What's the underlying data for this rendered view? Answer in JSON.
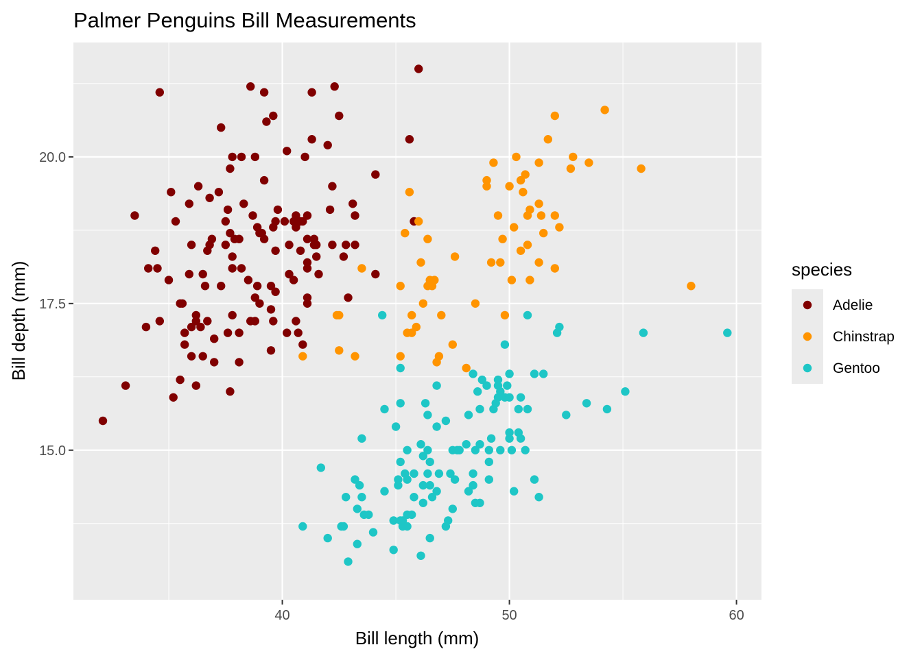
{
  "chart_data": {
    "type": "scatter",
    "title": "Palmer Penguins Bill Measurements",
    "xlabel": "Bill length (mm)",
    "ylabel": "Bill depth (mm)",
    "xlim": [
      30.8,
      61.1
    ],
    "ylim": [
      12.45,
      21.95
    ],
    "x_ticks": [
      40,
      50,
      60
    ],
    "x_tick_labels": [
      "40",
      "50",
      "60"
    ],
    "x_minor_ticks": [
      35,
      45,
      55
    ],
    "y_ticks": [
      15.0,
      17.5,
      20.0
    ],
    "y_tick_labels": [
      "15.0",
      "17.5",
      "20.0"
    ],
    "y_minor_ticks": [
      13.75,
      16.25,
      18.75,
      21.25
    ],
    "grid": true,
    "legend": {
      "title": "species",
      "placement": "right"
    },
    "series": [
      {
        "name": "Adelie",
        "color": "#800000",
        "points": [
          [
            32.1,
            15.5
          ],
          [
            33.1,
            16.1
          ],
          [
            33.5,
            19.0
          ],
          [
            34.0,
            17.1
          ],
          [
            34.1,
            18.1
          ],
          [
            34.4,
            18.4
          ],
          [
            34.5,
            18.1
          ],
          [
            34.6,
            21.1
          ],
          [
            34.6,
            17.2
          ],
          [
            35.0,
            17.9
          ],
          [
            35.1,
            19.4
          ],
          [
            35.2,
            15.9
          ],
          [
            35.3,
            18.9
          ],
          [
            35.5,
            16.2
          ],
          [
            35.5,
            17.5
          ],
          [
            35.6,
            17.5
          ],
          [
            35.7,
            17.0
          ],
          [
            35.7,
            16.8
          ],
          [
            35.9,
            18.0
          ],
          [
            35.9,
            19.2
          ],
          [
            36.0,
            18.5
          ],
          [
            36.0,
            16.6
          ],
          [
            36.0,
            17.1
          ],
          [
            36.2,
            16.1
          ],
          [
            36.2,
            17.3
          ],
          [
            36.2,
            17.2
          ],
          [
            36.3,
            19.5
          ],
          [
            36.4,
            17.1
          ],
          [
            36.5,
            16.6
          ],
          [
            36.5,
            18.0
          ],
          [
            36.6,
            17.8
          ],
          [
            36.7,
            18.4
          ],
          [
            36.7,
            17.2
          ],
          [
            36.8,
            18.5
          ],
          [
            36.8,
            19.3
          ],
          [
            36.9,
            18.6
          ],
          [
            37.0,
            16.5
          ],
          [
            37.0,
            16.9
          ],
          [
            37.2,
            19.4
          ],
          [
            37.3,
            17.8
          ],
          [
            37.3,
            20.5
          ],
          [
            37.5,
            18.9
          ],
          [
            37.5,
            18.5
          ],
          [
            37.6,
            19.1
          ],
          [
            37.6,
            17.0
          ],
          [
            37.7,
            16.0
          ],
          [
            37.7,
            18.7
          ],
          [
            37.7,
            19.8
          ],
          [
            37.8,
            18.3
          ],
          [
            37.8,
            17.3
          ],
          [
            37.8,
            20.0
          ],
          [
            37.8,
            18.1
          ],
          [
            37.9,
            18.6
          ],
          [
            38.1,
            18.6
          ],
          [
            38.1,
            17.0
          ],
          [
            38.1,
            16.5
          ],
          [
            38.2,
            20.0
          ],
          [
            38.2,
            18.1
          ],
          [
            38.3,
            19.2
          ],
          [
            38.5,
            17.9
          ],
          [
            38.6,
            21.2
          ],
          [
            38.6,
            17.2
          ],
          [
            38.7,
            19.0
          ],
          [
            38.8,
            17.2
          ],
          [
            38.8,
            20.0
          ],
          [
            38.8,
            17.6
          ],
          [
            38.9,
            18.8
          ],
          [
            38.9,
            17.8
          ],
          [
            39.0,
            18.7
          ],
          [
            39.0,
            17.5
          ],
          [
            39.1,
            18.7
          ],
          [
            39.2,
            21.1
          ],
          [
            39.2,
            19.6
          ],
          [
            39.2,
            18.6
          ],
          [
            39.3,
            20.6
          ],
          [
            39.5,
            17.4
          ],
          [
            39.5,
            16.7
          ],
          [
            39.5,
            17.8
          ],
          [
            39.6,
            18.8
          ],
          [
            39.6,
            20.7
          ],
          [
            39.6,
            17.2
          ],
          [
            39.7,
            18.4
          ],
          [
            39.7,
            18.9
          ],
          [
            39.7,
            17.7
          ],
          [
            39.8,
            19.1
          ],
          [
            40.1,
            18.9
          ],
          [
            40.2,
            17.0
          ],
          [
            40.2,
            20.1
          ],
          [
            40.3,
            18.0
          ],
          [
            40.3,
            18.5
          ],
          [
            40.5,
            18.9
          ],
          [
            40.5,
            17.9
          ],
          [
            40.6,
            18.8
          ],
          [
            40.6,
            17.2
          ],
          [
            40.6,
            19.0
          ],
          [
            40.7,
            17.0
          ],
          [
            40.8,
            18.4
          ],
          [
            40.8,
            18.9
          ],
          [
            40.9,
            18.9
          ],
          [
            40.9,
            16.8
          ],
          [
            41.0,
            20.0
          ],
          [
            41.1,
            18.2
          ],
          [
            41.1,
            19.0
          ],
          [
            41.1,
            17.5
          ],
          [
            41.1,
            18.6
          ],
          [
            41.1,
            17.6
          ],
          [
            41.1,
            18.1
          ],
          [
            41.3,
            21.1
          ],
          [
            41.3,
            20.3
          ],
          [
            41.4,
            18.5
          ],
          [
            41.4,
            18.6
          ],
          [
            41.5,
            18.3
          ],
          [
            41.5,
            18.5
          ],
          [
            41.6,
            18.0
          ],
          [
            42.0,
            20.2
          ],
          [
            42.1,
            19.1
          ],
          [
            42.2,
            18.5
          ],
          [
            42.2,
            19.5
          ],
          [
            42.3,
            21.2
          ],
          [
            42.5,
            20.7
          ],
          [
            42.7,
            18.3
          ],
          [
            42.8,
            18.5
          ],
          [
            42.9,
            17.6
          ],
          [
            43.1,
            19.2
          ],
          [
            43.2,
            18.5
          ],
          [
            43.2,
            19.0
          ],
          [
            44.1,
            18.0
          ],
          [
            44.1,
            19.7
          ],
          [
            45.6,
            20.3
          ],
          [
            45.8,
            18.9
          ],
          [
            46.0,
            21.5
          ]
        ]
      },
      {
        "name": "Chinstrap",
        "color": "#ff9400",
        "points": [
          [
            40.9,
            16.6
          ],
          [
            42.4,
            17.3
          ],
          [
            42.5,
            16.7
          ],
          [
            42.5,
            17.3
          ],
          [
            43.2,
            16.6
          ],
          [
            43.5,
            18.1
          ],
          [
            45.2,
            17.8
          ],
          [
            45.2,
            16.6
          ],
          [
            45.4,
            18.7
          ],
          [
            45.5,
            17.0
          ],
          [
            45.6,
            19.4
          ],
          [
            45.7,
            17.0
          ],
          [
            45.7,
            17.3
          ],
          [
            45.9,
            17.1
          ],
          [
            46.0,
            18.9
          ],
          [
            46.1,
            18.2
          ],
          [
            46.2,
            17.5
          ],
          [
            46.4,
            18.6
          ],
          [
            46.4,
            17.8
          ],
          [
            46.5,
            17.9
          ],
          [
            46.6,
            17.8
          ],
          [
            46.7,
            17.9
          ],
          [
            46.8,
            16.5
          ],
          [
            46.9,
            16.6
          ],
          [
            47.0,
            17.3
          ],
          [
            47.5,
            16.8
          ],
          [
            47.6,
            18.3
          ],
          [
            48.1,
            16.4
          ],
          [
            48.5,
            17.5
          ],
          [
            49.0,
            19.5
          ],
          [
            49.0,
            19.6
          ],
          [
            49.2,
            18.2
          ],
          [
            49.3,
            19.9
          ],
          [
            49.5,
            19.0
          ],
          [
            49.6,
            18.2
          ],
          [
            49.7,
            18.6
          ],
          [
            49.8,
            17.3
          ],
          [
            50.0,
            19.5
          ],
          [
            50.1,
            17.9
          ],
          [
            50.2,
            18.8
          ],
          [
            50.3,
            20.0
          ],
          [
            50.5,
            18.4
          ],
          [
            50.5,
            19.6
          ],
          [
            50.6,
            19.4
          ],
          [
            50.7,
            19.7
          ],
          [
            50.8,
            18.5
          ],
          [
            50.8,
            19.0
          ],
          [
            50.9,
            17.9
          ],
          [
            50.9,
            19.1
          ],
          [
            51.3,
            19.9
          ],
          [
            51.3,
            19.2
          ],
          [
            51.3,
            18.2
          ],
          [
            51.4,
            19.0
          ],
          [
            51.5,
            18.7
          ],
          [
            51.7,
            20.3
          ],
          [
            52.0,
            18.1
          ],
          [
            52.0,
            19.0
          ],
          [
            52.0,
            20.7
          ],
          [
            52.2,
            18.8
          ],
          [
            52.7,
            19.8
          ],
          [
            52.8,
            20.0
          ],
          [
            53.5,
            19.9
          ],
          [
            54.2,
            20.8
          ],
          [
            55.8,
            19.8
          ],
          [
            58.0,
            17.8
          ]
        ]
      },
      {
        "name": "Gentoo",
        "color": "#1ec6c6",
        "points": [
          [
            40.9,
            13.7
          ],
          [
            41.7,
            14.7
          ],
          [
            42.0,
            13.5
          ],
          [
            42.6,
            13.7
          ],
          [
            42.7,
            13.7
          ],
          [
            42.8,
            14.2
          ],
          [
            42.9,
            13.1
          ],
          [
            43.2,
            14.5
          ],
          [
            43.3,
            13.4
          ],
          [
            43.3,
            14.0
          ],
          [
            43.4,
            14.4
          ],
          [
            43.5,
            14.2
          ],
          [
            43.5,
            15.2
          ],
          [
            43.6,
            13.9
          ],
          [
            43.8,
            13.9
          ],
          [
            44.0,
            13.6
          ],
          [
            44.4,
            17.3
          ],
          [
            44.5,
            14.3
          ],
          [
            44.5,
            15.7
          ],
          [
            44.9,
            13.3
          ],
          [
            44.9,
            13.8
          ],
          [
            45.0,
            15.4
          ],
          [
            45.1,
            14.5
          ],
          [
            45.1,
            14.4
          ],
          [
            45.2,
            13.8
          ],
          [
            45.2,
            14.8
          ],
          [
            45.2,
            15.8
          ],
          [
            45.2,
            16.4
          ],
          [
            45.3,
            13.7
          ],
          [
            45.3,
            13.8
          ],
          [
            45.4,
            14.6
          ],
          [
            45.5,
            13.7
          ],
          [
            45.5,
            13.9
          ],
          [
            45.5,
            14.5
          ],
          [
            45.5,
            15.0
          ],
          [
            45.7,
            13.9
          ],
          [
            45.8,
            14.2
          ],
          [
            45.8,
            14.6
          ],
          [
            46.1,
            13.2
          ],
          [
            46.1,
            15.1
          ],
          [
            46.2,
            14.1
          ],
          [
            46.2,
            14.4
          ],
          [
            46.2,
            14.9
          ],
          [
            46.3,
            15.8
          ],
          [
            46.4,
            14.6
          ],
          [
            46.4,
            15.0
          ],
          [
            46.4,
            15.6
          ],
          [
            46.5,
            13.5
          ],
          [
            46.5,
            14.4
          ],
          [
            46.5,
            14.8
          ],
          [
            46.6,
            14.2
          ],
          [
            46.8,
            14.3
          ],
          [
            46.8,
            15.4
          ],
          [
            46.8,
            16.1
          ],
          [
            46.9,
            14.6
          ],
          [
            47.2,
            13.7
          ],
          [
            47.2,
            15.5
          ],
          [
            47.3,
            13.8
          ],
          [
            47.4,
            14.6
          ],
          [
            47.5,
            14.0
          ],
          [
            47.5,
            15.0
          ],
          [
            47.6,
            14.5
          ],
          [
            47.7,
            15.0
          ],
          [
            47.8,
            15.0
          ],
          [
            48.1,
            15.1
          ],
          [
            48.2,
            14.3
          ],
          [
            48.2,
            15.6
          ],
          [
            48.4,
            14.4
          ],
          [
            48.4,
            14.6
          ],
          [
            48.4,
            16.3
          ],
          [
            48.5,
            14.1
          ],
          [
            48.5,
            15.0
          ],
          [
            48.6,
            16.0
          ],
          [
            48.7,
            14.1
          ],
          [
            48.7,
            15.1
          ],
          [
            48.7,
            15.7
          ],
          [
            48.8,
            16.2
          ],
          [
            49.0,
            16.1
          ],
          [
            49.1,
            14.5
          ],
          [
            49.1,
            14.8
          ],
          [
            49.1,
            15.0
          ],
          [
            49.2,
            15.2
          ],
          [
            49.3,
            15.7
          ],
          [
            49.4,
            15.8
          ],
          [
            49.5,
            15.9
          ],
          [
            49.5,
            16.1
          ],
          [
            49.5,
            16.2
          ],
          [
            49.6,
            15.0
          ],
          [
            49.6,
            16.0
          ],
          [
            49.8,
            15.9
          ],
          [
            49.8,
            16.8
          ],
          [
            49.9,
            16.1
          ],
          [
            50.0,
            15.2
          ],
          [
            50.0,
            15.3
          ],
          [
            50.0,
            15.9
          ],
          [
            50.0,
            16.3
          ],
          [
            50.1,
            15.0
          ],
          [
            50.2,
            14.3
          ],
          [
            50.4,
            15.3
          ],
          [
            50.4,
            15.7
          ],
          [
            50.5,
            15.2
          ],
          [
            50.5,
            15.9
          ],
          [
            50.7,
            15.0
          ],
          [
            50.8,
            15.7
          ],
          [
            50.8,
            17.3
          ],
          [
            51.1,
            14.5
          ],
          [
            51.1,
            16.3
          ],
          [
            51.3,
            14.2
          ],
          [
            51.5,
            16.3
          ],
          [
            52.1,
            17.0
          ],
          [
            52.2,
            17.1
          ],
          [
            52.5,
            15.6
          ],
          [
            53.4,
            15.8
          ],
          [
            54.3,
            15.7
          ],
          [
            55.1,
            16.0
          ],
          [
            55.9,
            17.0
          ],
          [
            59.6,
            17.0
          ]
        ]
      }
    ]
  }
}
